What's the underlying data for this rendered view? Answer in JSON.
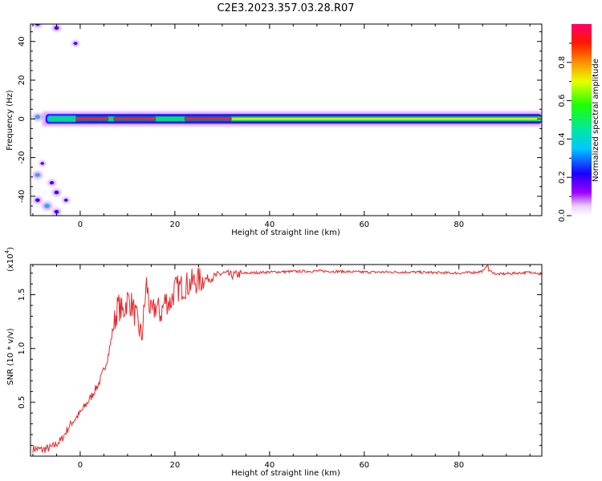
{
  "title": "C2E3.2023.357.03.28.R07",
  "colors": {
    "snr_line": "#e8262a",
    "band_core": "#e8262a",
    "band_mid": "#00e07a",
    "band_outer": "#00b8e8",
    "band_edge": "#1a00ff",
    "halo": "#a000ff"
  },
  "chart_data": [
    {
      "type": "heatmap",
      "xlabel": "Height of straight line (km)",
      "ylabel": "Frequency (Hz)",
      "xlim": [
        -10.5,
        97.5
      ],
      "ylim": [
        -50,
        49
      ],
      "x_ticks": [
        0,
        20,
        40,
        60,
        80
      ],
      "x_tick_labels": [
        "0",
        "20",
        "40",
        "60",
        "80"
      ],
      "y_ticks": [
        -40,
        -20,
        0,
        20,
        40
      ],
      "y_tick_labels": [
        "-40",
        "-20",
        "0",
        "20",
        "40"
      ],
      "colorbar": {
        "label": "Normalized spectral amplitude",
        "range": [
          0,
          1
        ],
        "ticks": [
          0.0,
          0.2,
          0.4,
          0.6,
          0.8
        ],
        "tick_labels": [
          "0.0",
          "0.2",
          "0.4",
          "0.6",
          "0.8"
        ],
        "colormap": "rainbow (white-purple-blue-cyan-green-yellow-orange-red-pink)"
      },
      "band": {
        "center_frequency_hz": 0,
        "x_start": -8,
        "x_end": 97.5,
        "peak_segments": [
          {
            "x_start": -1,
            "x_end": 6,
            "level": 0.95
          },
          {
            "x_start": 7,
            "x_end": 16,
            "level": 0.9
          },
          {
            "x_start": 22,
            "x_end": 32,
            "level": 0.85
          },
          {
            "x_start": 32,
            "x_end": 97.5,
            "level": 0.45
          }
        ]
      },
      "blobs": [
        {
          "x": -9,
          "y": 49,
          "amp": 0.3
        },
        {
          "x": -5,
          "y": 47,
          "amp": 0.3
        },
        {
          "x": -1,
          "y": 39,
          "amp": 0.2
        },
        {
          "x": -9,
          "y": 1,
          "amp": 0.35
        },
        {
          "x": -9,
          "y": -29,
          "amp": 0.35
        },
        {
          "x": -6,
          "y": -33,
          "amp": 0.25
        },
        {
          "x": -5,
          "y": -38,
          "amp": 0.3
        },
        {
          "x": -9,
          "y": -42,
          "amp": 0.3
        },
        {
          "x": -7,
          "y": -45,
          "amp": 0.4
        },
        {
          "x": -5,
          "y": -48,
          "amp": 0.3
        },
        {
          "x": -3,
          "y": -42,
          "amp": 0.2
        },
        {
          "x": -8,
          "y": -23,
          "amp": 0.15
        }
      ]
    },
    {
      "type": "line",
      "xlabel": "Height of straight line (km)",
      "ylabel": "SNR (10 * v/v)",
      "axis_multiplier_label": "(x10",
      "axis_multiplier_exponent": "4",
      "y_unit_scale": 10000,
      "xlim": [
        -10.5,
        97.5
      ],
      "ylim": [
        0,
        1.78
      ],
      "x_ticks": [
        0,
        20,
        40,
        60,
        80
      ],
      "x_tick_labels": [
        "0",
        "20",
        "40",
        "60",
        "80"
      ],
      "y_ticks": [
        0.5,
        1.0,
        1.5
      ],
      "y_tick_labels": [
        "0.5",
        "1.0",
        "1.5"
      ],
      "series": [
        {
          "x": [
            -10,
            -8,
            -6,
            -4,
            -2,
            0,
            2,
            4,
            5,
            6,
            7,
            8,
            9,
            10,
            11,
            12,
            13,
            14,
            15,
            16,
            17,
            18,
            19,
            20,
            22,
            24,
            26,
            28,
            30,
            32,
            35,
            40,
            50,
            60,
            70,
            80,
            84,
            86,
            88,
            92,
            96,
            97.5
          ],
          "y": [
            0.07,
            0.06,
            0.08,
            0.15,
            0.3,
            0.4,
            0.53,
            0.68,
            0.8,
            0.95,
            1.2,
            1.4,
            1.33,
            1.46,
            1.4,
            1.25,
            1.1,
            1.6,
            1.3,
            1.4,
            1.32,
            1.45,
            1.42,
            1.55,
            1.58,
            1.62,
            1.64,
            1.66,
            1.7,
            1.68,
            1.7,
            1.71,
            1.72,
            1.71,
            1.71,
            1.7,
            1.71,
            1.73,
            1.69,
            1.7,
            1.71,
            1.68
          ]
        }
      ]
    }
  ]
}
